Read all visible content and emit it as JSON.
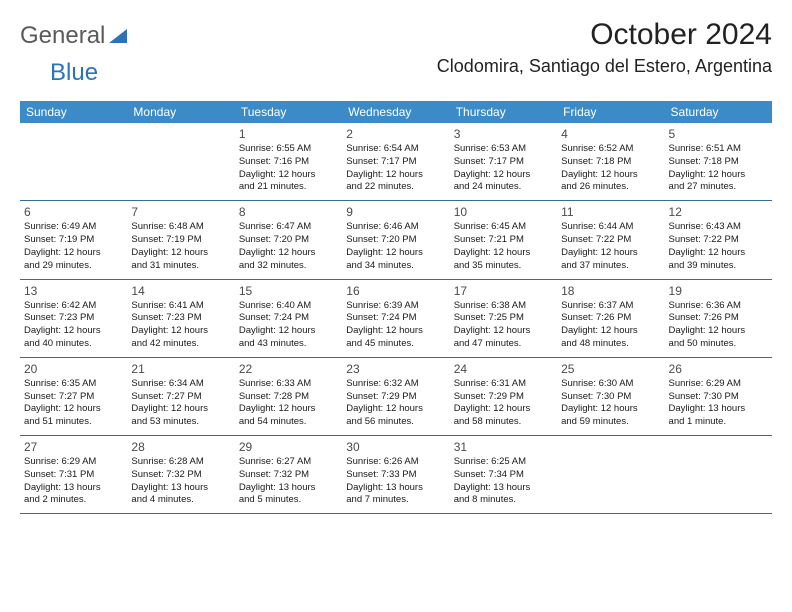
{
  "logo": {
    "text1": "General",
    "text2": "Blue"
  },
  "title": "October 2024",
  "location": "Clodomira, Santiago del Estero, Argentina",
  "styling": {
    "header_bg": "#3b8bc8",
    "header_text": "#ffffff",
    "divider_color": "#3b6b95",
    "body_bg": "#ffffff",
    "text_color": "#1a1a1a",
    "daynum_color": "#4a4a4a",
    "title_fontsize": 30,
    "location_fontsize": 18,
    "weekday_fontsize": 12,
    "daynum_fontsize": 12,
    "body_fontsize": 9.5,
    "columns": 7,
    "rows": 5
  },
  "weekdays": [
    "Sunday",
    "Monday",
    "Tuesday",
    "Wednesday",
    "Thursday",
    "Friday",
    "Saturday"
  ],
  "weeks": [
    [
      {
        "n": "",
        "sunrise": "",
        "sunset": "",
        "daylight1": "",
        "daylight2": ""
      },
      {
        "n": "",
        "sunrise": "",
        "sunset": "",
        "daylight1": "",
        "daylight2": ""
      },
      {
        "n": "1",
        "sunrise": "Sunrise: 6:55 AM",
        "sunset": "Sunset: 7:16 PM",
        "daylight1": "Daylight: 12 hours",
        "daylight2": "and 21 minutes."
      },
      {
        "n": "2",
        "sunrise": "Sunrise: 6:54 AM",
        "sunset": "Sunset: 7:17 PM",
        "daylight1": "Daylight: 12 hours",
        "daylight2": "and 22 minutes."
      },
      {
        "n": "3",
        "sunrise": "Sunrise: 6:53 AM",
        "sunset": "Sunset: 7:17 PM",
        "daylight1": "Daylight: 12 hours",
        "daylight2": "and 24 minutes."
      },
      {
        "n": "4",
        "sunrise": "Sunrise: 6:52 AM",
        "sunset": "Sunset: 7:18 PM",
        "daylight1": "Daylight: 12 hours",
        "daylight2": "and 26 minutes."
      },
      {
        "n": "5",
        "sunrise": "Sunrise: 6:51 AM",
        "sunset": "Sunset: 7:18 PM",
        "daylight1": "Daylight: 12 hours",
        "daylight2": "and 27 minutes."
      }
    ],
    [
      {
        "n": "6",
        "sunrise": "Sunrise: 6:49 AM",
        "sunset": "Sunset: 7:19 PM",
        "daylight1": "Daylight: 12 hours",
        "daylight2": "and 29 minutes."
      },
      {
        "n": "7",
        "sunrise": "Sunrise: 6:48 AM",
        "sunset": "Sunset: 7:19 PM",
        "daylight1": "Daylight: 12 hours",
        "daylight2": "and 31 minutes."
      },
      {
        "n": "8",
        "sunrise": "Sunrise: 6:47 AM",
        "sunset": "Sunset: 7:20 PM",
        "daylight1": "Daylight: 12 hours",
        "daylight2": "and 32 minutes."
      },
      {
        "n": "9",
        "sunrise": "Sunrise: 6:46 AM",
        "sunset": "Sunset: 7:20 PM",
        "daylight1": "Daylight: 12 hours",
        "daylight2": "and 34 minutes."
      },
      {
        "n": "10",
        "sunrise": "Sunrise: 6:45 AM",
        "sunset": "Sunset: 7:21 PM",
        "daylight1": "Daylight: 12 hours",
        "daylight2": "and 35 minutes."
      },
      {
        "n": "11",
        "sunrise": "Sunrise: 6:44 AM",
        "sunset": "Sunset: 7:22 PM",
        "daylight1": "Daylight: 12 hours",
        "daylight2": "and 37 minutes."
      },
      {
        "n": "12",
        "sunrise": "Sunrise: 6:43 AM",
        "sunset": "Sunset: 7:22 PM",
        "daylight1": "Daylight: 12 hours",
        "daylight2": "and 39 minutes."
      }
    ],
    [
      {
        "n": "13",
        "sunrise": "Sunrise: 6:42 AM",
        "sunset": "Sunset: 7:23 PM",
        "daylight1": "Daylight: 12 hours",
        "daylight2": "and 40 minutes."
      },
      {
        "n": "14",
        "sunrise": "Sunrise: 6:41 AM",
        "sunset": "Sunset: 7:23 PM",
        "daylight1": "Daylight: 12 hours",
        "daylight2": "and 42 minutes."
      },
      {
        "n": "15",
        "sunrise": "Sunrise: 6:40 AM",
        "sunset": "Sunset: 7:24 PM",
        "daylight1": "Daylight: 12 hours",
        "daylight2": "and 43 minutes."
      },
      {
        "n": "16",
        "sunrise": "Sunrise: 6:39 AM",
        "sunset": "Sunset: 7:24 PM",
        "daylight1": "Daylight: 12 hours",
        "daylight2": "and 45 minutes."
      },
      {
        "n": "17",
        "sunrise": "Sunrise: 6:38 AM",
        "sunset": "Sunset: 7:25 PM",
        "daylight1": "Daylight: 12 hours",
        "daylight2": "and 47 minutes."
      },
      {
        "n": "18",
        "sunrise": "Sunrise: 6:37 AM",
        "sunset": "Sunset: 7:26 PM",
        "daylight1": "Daylight: 12 hours",
        "daylight2": "and 48 minutes."
      },
      {
        "n": "19",
        "sunrise": "Sunrise: 6:36 AM",
        "sunset": "Sunset: 7:26 PM",
        "daylight1": "Daylight: 12 hours",
        "daylight2": "and 50 minutes."
      }
    ],
    [
      {
        "n": "20",
        "sunrise": "Sunrise: 6:35 AM",
        "sunset": "Sunset: 7:27 PM",
        "daylight1": "Daylight: 12 hours",
        "daylight2": "and 51 minutes."
      },
      {
        "n": "21",
        "sunrise": "Sunrise: 6:34 AM",
        "sunset": "Sunset: 7:27 PM",
        "daylight1": "Daylight: 12 hours",
        "daylight2": "and 53 minutes."
      },
      {
        "n": "22",
        "sunrise": "Sunrise: 6:33 AM",
        "sunset": "Sunset: 7:28 PM",
        "daylight1": "Daylight: 12 hours",
        "daylight2": "and 54 minutes."
      },
      {
        "n": "23",
        "sunrise": "Sunrise: 6:32 AM",
        "sunset": "Sunset: 7:29 PM",
        "daylight1": "Daylight: 12 hours",
        "daylight2": "and 56 minutes."
      },
      {
        "n": "24",
        "sunrise": "Sunrise: 6:31 AM",
        "sunset": "Sunset: 7:29 PM",
        "daylight1": "Daylight: 12 hours",
        "daylight2": "and 58 minutes."
      },
      {
        "n": "25",
        "sunrise": "Sunrise: 6:30 AM",
        "sunset": "Sunset: 7:30 PM",
        "daylight1": "Daylight: 12 hours",
        "daylight2": "and 59 minutes."
      },
      {
        "n": "26",
        "sunrise": "Sunrise: 6:29 AM",
        "sunset": "Sunset: 7:30 PM",
        "daylight1": "Daylight: 13 hours",
        "daylight2": "and 1 minute."
      }
    ],
    [
      {
        "n": "27",
        "sunrise": "Sunrise: 6:29 AM",
        "sunset": "Sunset: 7:31 PM",
        "daylight1": "Daylight: 13 hours",
        "daylight2": "and 2 minutes."
      },
      {
        "n": "28",
        "sunrise": "Sunrise: 6:28 AM",
        "sunset": "Sunset: 7:32 PM",
        "daylight1": "Daylight: 13 hours",
        "daylight2": "and 4 minutes."
      },
      {
        "n": "29",
        "sunrise": "Sunrise: 6:27 AM",
        "sunset": "Sunset: 7:32 PM",
        "daylight1": "Daylight: 13 hours",
        "daylight2": "and 5 minutes."
      },
      {
        "n": "30",
        "sunrise": "Sunrise: 6:26 AM",
        "sunset": "Sunset: 7:33 PM",
        "daylight1": "Daylight: 13 hours",
        "daylight2": "and 7 minutes."
      },
      {
        "n": "31",
        "sunrise": "Sunrise: 6:25 AM",
        "sunset": "Sunset: 7:34 PM",
        "daylight1": "Daylight: 13 hours",
        "daylight2": "and 8 minutes."
      },
      {
        "n": "",
        "sunrise": "",
        "sunset": "",
        "daylight1": "",
        "daylight2": ""
      },
      {
        "n": "",
        "sunrise": "",
        "sunset": "",
        "daylight1": "",
        "daylight2": ""
      }
    ]
  ]
}
